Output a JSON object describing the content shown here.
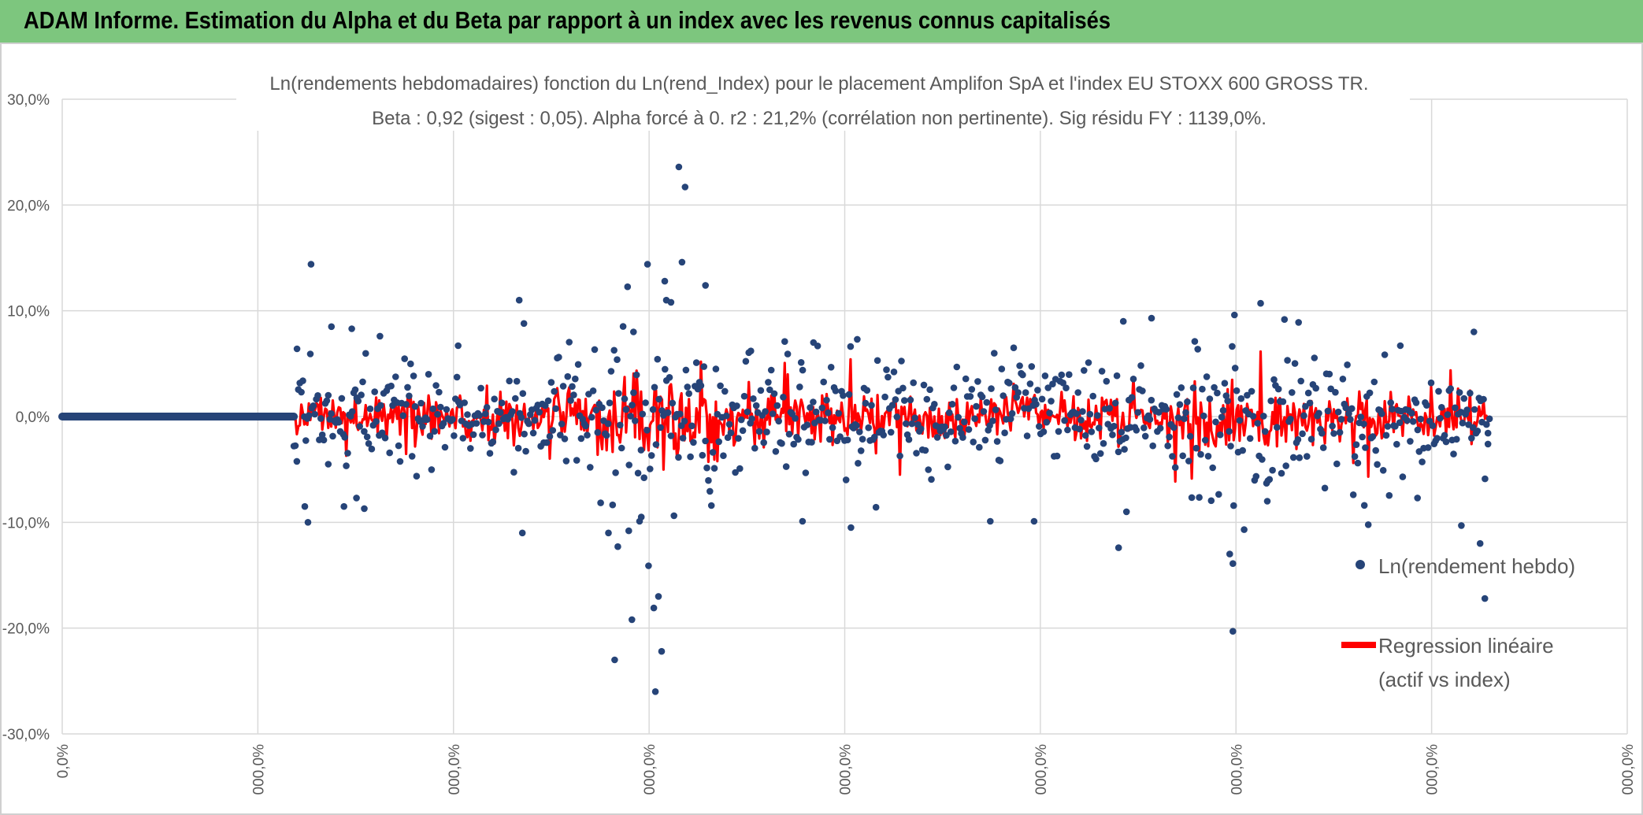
{
  "header": {
    "title": "ADAM Informe. Estimation du Alpha et du Beta par rapport à un index avec les revenus connus capitalisés",
    "bar_color": "#7dc67e"
  },
  "chart_data": {
    "type": "scatter",
    "title": "Ln(rendements hebdomadaires) fonction du Ln(rend_Index) pour le placement Amplifon SpA et l'index EU STOXX 600 GROSS TR.",
    "subtitle": "Beta : 0,92 (sigest : 0,05). Alpha forcé à 0. r2 : 21,2% (corrélation non pertinente). Sig résidu FY : 1139,0%.",
    "xlabel": "",
    "ylabel": "",
    "ylim": [
      -0.3,
      0.3
    ],
    "y_ticks": [
      {
        "value": 0.3,
        "label": "30,0%"
      },
      {
        "value": 0.2,
        "label": "20,0%"
      },
      {
        "value": 0.1,
        "label": "10,0%"
      },
      {
        "value": 0.0,
        "label": "0,0%"
      },
      {
        "value": -0.1,
        "label": "-10,0%"
      },
      {
        "value": -0.2,
        "label": "-20,0%"
      },
      {
        "value": -0.3,
        "label": "-30,0%"
      }
    ],
    "x_ticks": [
      "0,0%",
      "000,0%",
      "000,0%",
      "000,0%",
      "000,0%",
      "000,0%",
      "000,0%",
      "000,0%",
      "000,0%"
    ],
    "grid": true,
    "legend_position": "right",
    "series": [
      {
        "name": "Ln(rendement hebdo)",
        "type": "scatter",
        "color": "#264478",
        "outliers": [
          {
            "x": 0.15,
            "y": 0.064
          },
          {
            "x": 0.155,
            "y": -0.085
          },
          {
            "x": 0.157,
            "y": -0.1
          },
          {
            "x": 0.159,
            "y": 0.144
          },
          {
            "x": 0.17,
            "y": -0.045
          },
          {
            "x": 0.172,
            "y": 0.085
          },
          {
            "x": 0.18,
            "y": -0.085
          },
          {
            "x": 0.185,
            "y": 0.083
          },
          {
            "x": 0.188,
            "y": -0.077
          },
          {
            "x": 0.193,
            "y": -0.087
          },
          {
            "x": 0.203,
            "y": 0.076
          },
          {
            "x": 0.253,
            "y": 0.067
          },
          {
            "x": 0.292,
            "y": 0.11
          },
          {
            "x": 0.294,
            "y": -0.11
          },
          {
            "x": 0.295,
            "y": 0.088
          },
          {
            "x": 0.349,
            "y": -0.11
          },
          {
            "x": 0.353,
            "y": -0.23
          },
          {
            "x": 0.355,
            "y": -0.123
          },
          {
            "x": 0.362,
            "y": -0.108
          },
          {
            "x": 0.364,
            "y": -0.192
          },
          {
            "x": 0.365,
            "y": 0.08
          },
          {
            "x": 0.37,
            "y": -0.095
          },
          {
            "x": 0.374,
            "y": 0.144
          },
          {
            "x": 0.378,
            "y": -0.181
          },
          {
            "x": 0.379,
            "y": -0.26
          },
          {
            "x": 0.381,
            "y": -0.17
          },
          {
            "x": 0.383,
            "y": -0.222
          },
          {
            "x": 0.385,
            "y": 0.128
          },
          {
            "x": 0.386,
            "y": 0.11
          },
          {
            "x": 0.389,
            "y": 0.108
          },
          {
            "x": 0.394,
            "y": 0.236
          },
          {
            "x": 0.396,
            "y": 0.146
          },
          {
            "x": 0.398,
            "y": 0.217
          },
          {
            "x": 0.411,
            "y": 0.124
          },
          {
            "x": 0.44,
            "y": 0.062
          },
          {
            "x": 0.473,
            "y": -0.099
          },
          {
            "x": 0.48,
            "y": 0.07
          },
          {
            "x": 0.504,
            "y": -0.105
          },
          {
            "x": 0.508,
            "y": 0.073
          },
          {
            "x": 0.593,
            "y": -0.099
          },
          {
            "x": 0.621,
            "y": -0.099
          },
          {
            "x": 0.678,
            "y": 0.09
          },
          {
            "x": 0.696,
            "y": 0.093
          },
          {
            "x": 0.675,
            "y": -0.124
          },
          {
            "x": 0.68,
            "y": -0.09
          },
          {
            "x": 0.748,
            "y": -0.203
          },
          {
            "x": 0.749,
            "y": 0.096
          },
          {
            "x": 0.746,
            "y": -0.13
          },
          {
            "x": 0.748,
            "y": -0.139
          },
          {
            "x": 0.77,
            "y": -0.08
          },
          {
            "x": 0.79,
            "y": 0.089
          },
          {
            "x": 0.832,
            "y": -0.084
          },
          {
            "x": 0.855,
            "y": 0.067
          },
          {
            "x": 0.866,
            "y": -0.077
          },
          {
            "x": 0.894,
            "y": -0.103
          },
          {
            "x": 0.902,
            "y": 0.08
          },
          {
            "x": 0.906,
            "y": -0.12
          },
          {
            "x": 0.909,
            "y": -0.172
          },
          {
            "x": 0.911,
            "y": -0.026
          }
        ]
      },
      {
        "name": "Regression linéaire (actif vs index)",
        "type": "line",
        "color": "#ff0000",
        "beta": 0.92
      }
    ],
    "flat_segment": {
      "x_start": 0.0,
      "x_end": 0.148,
      "y": 0.0
    },
    "active_range": {
      "x_start": 0.148,
      "x_end": 0.912
    }
  },
  "legend": {
    "item1": "Ln(rendement hebdo)",
    "item2_line1": "Regression linéaire",
    "item2_line2": "(actif vs index)"
  }
}
